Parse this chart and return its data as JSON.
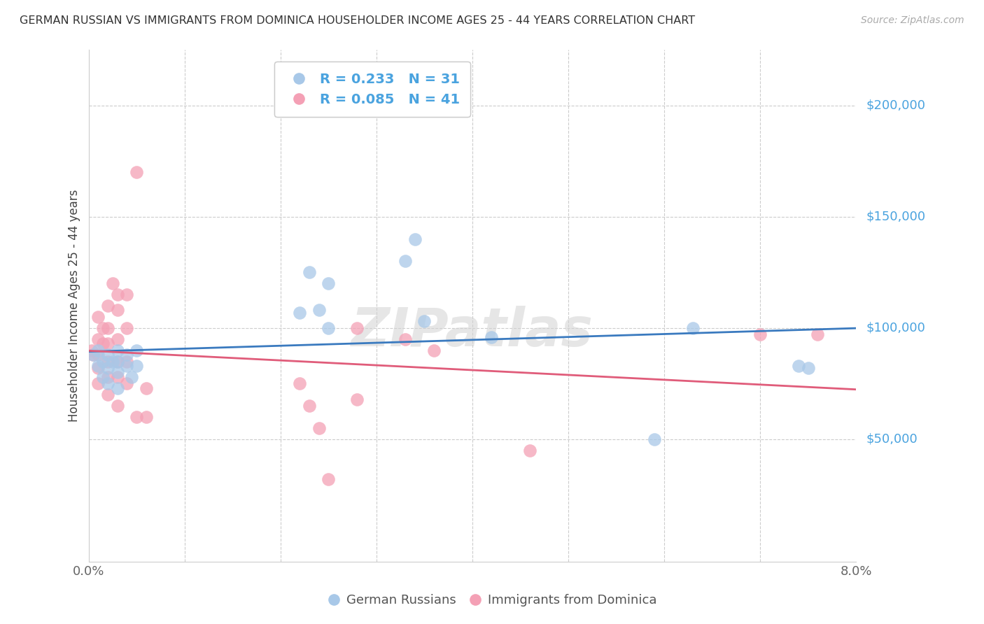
{
  "title": "GERMAN RUSSIAN VS IMMIGRANTS FROM DOMINICA HOUSEHOLDER INCOME AGES 25 - 44 YEARS CORRELATION CHART",
  "source": "Source: ZipAtlas.com",
  "ylabel": "Householder Income Ages 25 - 44 years",
  "xlim": [
    0.0,
    0.08
  ],
  "ylim": [
    -5000,
    225000
  ],
  "xticks": [
    0.0,
    0.01,
    0.02,
    0.03,
    0.04,
    0.05,
    0.06,
    0.07,
    0.08
  ],
  "xtick_labels": [
    "0.0%",
    "",
    "",
    "",
    "",
    "",
    "",
    "",
    "8.0%"
  ],
  "blue_scatter_color": "#a8c8e8",
  "pink_scatter_color": "#f4a0b5",
  "blue_line_color": "#3a7abf",
  "pink_line_color": "#e05c7a",
  "label_color": "#4aa3df",
  "legend_blue_R": "R = 0.233",
  "legend_blue_N": "N = 31",
  "legend_pink_R": "R = 0.085",
  "legend_pink_N": "N = 41",
  "watermark": "ZIPatlas",
  "german_russian_x": [
    0.0005,
    0.001,
    0.001,
    0.0015,
    0.0015,
    0.002,
    0.002,
    0.002,
    0.0025,
    0.003,
    0.003,
    0.003,
    0.003,
    0.004,
    0.004,
    0.0045,
    0.005,
    0.005,
    0.022,
    0.023,
    0.024,
    0.025,
    0.025,
    0.033,
    0.034,
    0.035,
    0.042,
    0.059,
    0.063,
    0.074,
    0.075
  ],
  "german_russian_y": [
    88000,
    90000,
    83000,
    85000,
    78000,
    88000,
    82000,
    75000,
    85000,
    90000,
    85000,
    80000,
    73000,
    88000,
    83000,
    78000,
    90000,
    83000,
    107000,
    125000,
    108000,
    120000,
    100000,
    130000,
    140000,
    103000,
    96000,
    50000,
    100000,
    83000,
    82000
  ],
  "dominica_x": [
    0.0003,
    0.0005,
    0.001,
    0.001,
    0.001,
    0.001,
    0.001,
    0.0015,
    0.0015,
    0.002,
    0.002,
    0.002,
    0.002,
    0.002,
    0.002,
    0.0025,
    0.003,
    0.003,
    0.003,
    0.003,
    0.003,
    0.003,
    0.004,
    0.004,
    0.004,
    0.004,
    0.005,
    0.005,
    0.006,
    0.006,
    0.022,
    0.023,
    0.024,
    0.025,
    0.028,
    0.028,
    0.033,
    0.036,
    0.046,
    0.07,
    0.076
  ],
  "dominica_y": [
    90000,
    88000,
    105000,
    95000,
    88000,
    82000,
    75000,
    100000,
    93000,
    110000,
    100000,
    93000,
    85000,
    78000,
    70000,
    120000,
    115000,
    108000,
    95000,
    85000,
    78000,
    65000,
    115000,
    100000,
    85000,
    75000,
    170000,
    60000,
    73000,
    60000,
    75000,
    65000,
    55000,
    32000,
    100000,
    68000,
    95000,
    90000,
    45000,
    97000,
    97000
  ]
}
